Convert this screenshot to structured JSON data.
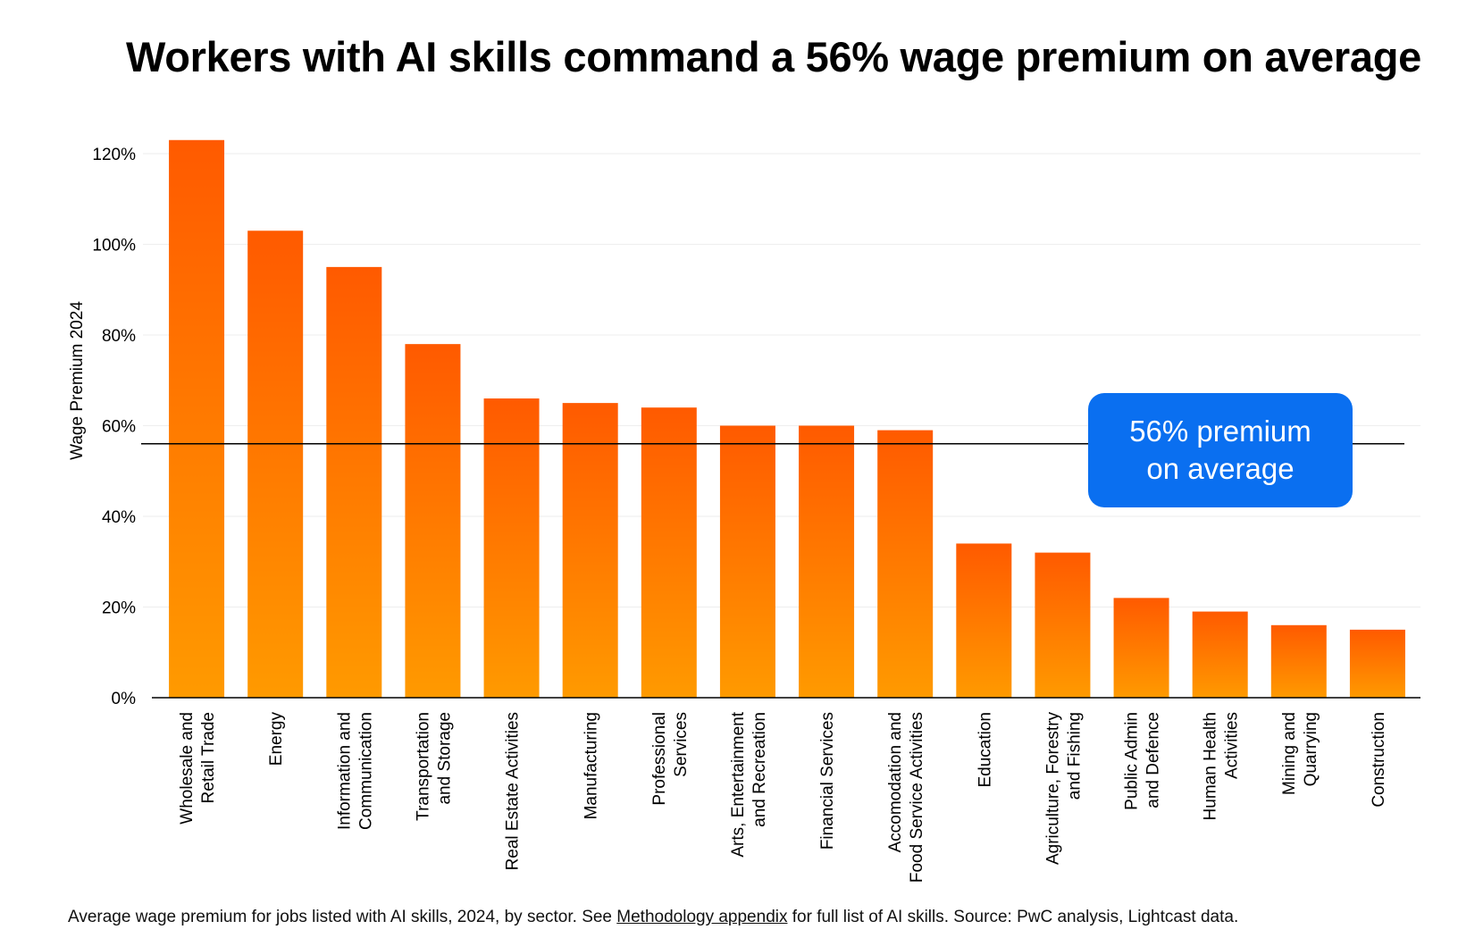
{
  "title": "Workers with AI skills command a 56% wage premium on average",
  "callout": {
    "line1": "56% premium",
    "line2": "on average"
  },
  "footnote": {
    "before": "Average wage premium for jobs listed with AI skills, 2024, by sector. See ",
    "link": "Methodology appendix",
    "after": " for full list of AI skills. Source: PwC analysis, Lightcast data."
  },
  "colors": {
    "bar_top": "#ff5a00",
    "bar_bottom": "#ff9a00",
    "callout": "#0a6ff0",
    "average_line": "#000000",
    "grid": "#eeeeee"
  },
  "chart_data": {
    "type": "bar",
    "ylabel": "Wage Premium 2024",
    "ylim": [
      0,
      120
    ],
    "yticks": [
      "0%",
      "20%",
      "40%",
      "60%",
      "80%",
      "100%",
      "120%"
    ],
    "grid": true,
    "average": 56,
    "categories": [
      [
        "Wholesale and",
        "Retail Trade"
      ],
      [
        "Energy"
      ],
      [
        "Information and",
        "Communication"
      ],
      [
        "Transportation",
        "and Storage"
      ],
      [
        "Real Estate Activities"
      ],
      [
        "Manufacturing"
      ],
      [
        "Professional",
        "Services"
      ],
      [
        "Arts, Entertainment",
        "and Recreation"
      ],
      [
        "Financial Services"
      ],
      [
        "Accomodation and",
        "Food Service Activities"
      ],
      [
        "Education"
      ],
      [
        "Agriculture, Forestry",
        "and Fishing"
      ],
      [
        "Public Admin",
        "and Defence"
      ],
      [
        "Human Health",
        "Activities"
      ],
      [
        "Mining and",
        "Quarrying"
      ],
      [
        "Construction"
      ]
    ],
    "values": [
      123,
      103,
      95,
      78,
      66,
      65,
      64,
      60,
      60,
      59,
      34,
      32,
      22,
      19,
      16,
      15
    ]
  }
}
